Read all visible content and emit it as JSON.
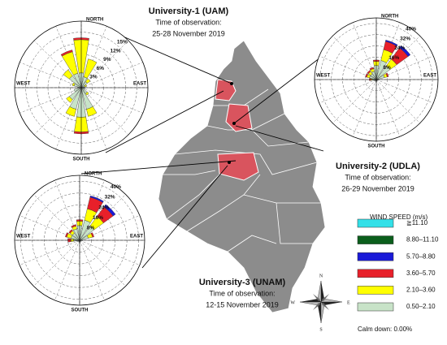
{
  "roses": [
    {
      "title": "University-1 (UAM)",
      "time_label": "Time of observation:",
      "dates": "25-28 November 2019",
      "directions": [
        "NORTH",
        "EAST",
        "SOUTH",
        "WEST"
      ],
      "rlim": [
        0,
        18
      ],
      "rings": [
        {
          "value": 3,
          "label": "3%"
        },
        {
          "value": 6,
          "label": "6%"
        },
        {
          "value": 9,
          "label": "9%"
        },
        {
          "value": 12,
          "label": "12%"
        },
        {
          "value": 15,
          "label": "15%"
        }
      ],
      "petals": [
        [
          4,
          9,
          0.5,
          0
        ],
        [
          3,
          5,
          0,
          0
        ],
        [
          2,
          1,
          0,
          0
        ],
        [
          1,
          0.5,
          0,
          0
        ],
        [
          1,
          0,
          0,
          0
        ],
        [
          1,
          0,
          0,
          0
        ],
        [
          2,
          0.5,
          0,
          0
        ],
        [
          6,
          2,
          0,
          0
        ],
        [
          8,
          4,
          0.5,
          0
        ],
        [
          6,
          2,
          0,
          0
        ],
        [
          4,
          1,
          0,
          0
        ],
        [
          2,
          0,
          0,
          0
        ],
        [
          1,
          0,
          0,
          0
        ],
        [
          2,
          0.5,
          0,
          0
        ],
        [
          4,
          2,
          0,
          0
        ],
        [
          4,
          6,
          0.5,
          0
        ]
      ]
    },
    {
      "title": "University-2 (UDLA)",
      "time_label": "Time of observation:",
      "dates": "26-29 November 2019",
      "directions": [
        "NORTH",
        "EAST",
        "SOUTH",
        "WEST"
      ],
      "rlim": [
        0,
        44
      ],
      "rings": [
        {
          "value": 8,
          "label": "8%"
        },
        {
          "value": 16,
          "label": "16%"
        },
        {
          "value": 24,
          "label": "24%"
        },
        {
          "value": 32,
          "label": "32%"
        },
        {
          "value": 40,
          "label": "40%"
        }
      ],
      "petals": [
        [
          10,
          3,
          1,
          0
        ],
        [
          14,
          8,
          6,
          1
        ],
        [
          12,
          6,
          10,
          2
        ],
        [
          6,
          2,
          1,
          0
        ],
        [
          2,
          0,
          0,
          0
        ],
        [
          1,
          0,
          0,
          0
        ],
        [
          1,
          0,
          0,
          0
        ],
        [
          1,
          0,
          0,
          0
        ],
        [
          2,
          0,
          0,
          0
        ],
        [
          1,
          0,
          0,
          0
        ],
        [
          1,
          0,
          0,
          0
        ],
        [
          2,
          0,
          0,
          0
        ],
        [
          3,
          1,
          1,
          0
        ],
        [
          5,
          2,
          1,
          0
        ],
        [
          5,
          2,
          1,
          0
        ],
        [
          6,
          2,
          1,
          0
        ]
      ]
    },
    {
      "title": "University-3 (UNAM)",
      "time_label": "Time of observation:",
      "dates": "12-15 November 2019",
      "directions": [
        "NORTH",
        "EAST",
        "SOUTH",
        "WEST"
      ],
      "rlim": [
        0,
        44
      ],
      "rings": [
        {
          "value": 8,
          "label": "8%"
        },
        {
          "value": 16,
          "label": "16%"
        },
        {
          "value": 24,
          "label": "24%"
        },
        {
          "value": 32,
          "label": "32%"
        },
        {
          "value": 40,
          "label": "40%"
        }
      ],
      "petals": [
        [
          10,
          3,
          1,
          0
        ],
        [
          14,
          8,
          8,
          1
        ],
        [
          12,
          8,
          8,
          2
        ],
        [
          6,
          3,
          1,
          0
        ],
        [
          2,
          0,
          0,
          0
        ],
        [
          1,
          0,
          0,
          0
        ],
        [
          1,
          0,
          0,
          0
        ],
        [
          1,
          0,
          0,
          0
        ],
        [
          2,
          0,
          0,
          0
        ],
        [
          1,
          0,
          0,
          0
        ],
        [
          1,
          0,
          0,
          0
        ],
        [
          2,
          0,
          0,
          0
        ],
        [
          4,
          2,
          2,
          0
        ],
        [
          6,
          3,
          1,
          0
        ],
        [
          6,
          2,
          1,
          0
        ],
        [
          8,
          2,
          1,
          0
        ]
      ]
    }
  ],
  "legend": {
    "title": "WIND SPEED (m/s)",
    "classes": [
      {
        "label": "0.50–2.10",
        "color": "#c8e3c8"
      },
      {
        "label": "2.10–3.60",
        "color": "#ffff00"
      },
      {
        "label": "3.60–5.70",
        "color": "#e8202a"
      },
      {
        "label": "5.70–8.80",
        "color": "#1a1ad8"
      },
      {
        "label": "8.80–11.10",
        "color": "#0b5e1c"
      },
      {
        "label": "≧11.10",
        "color": "#33e0e8"
      }
    ],
    "calm": "Calm down: 0.00%"
  },
  "compass": [
    "N",
    "E",
    "S",
    "W"
  ]
}
